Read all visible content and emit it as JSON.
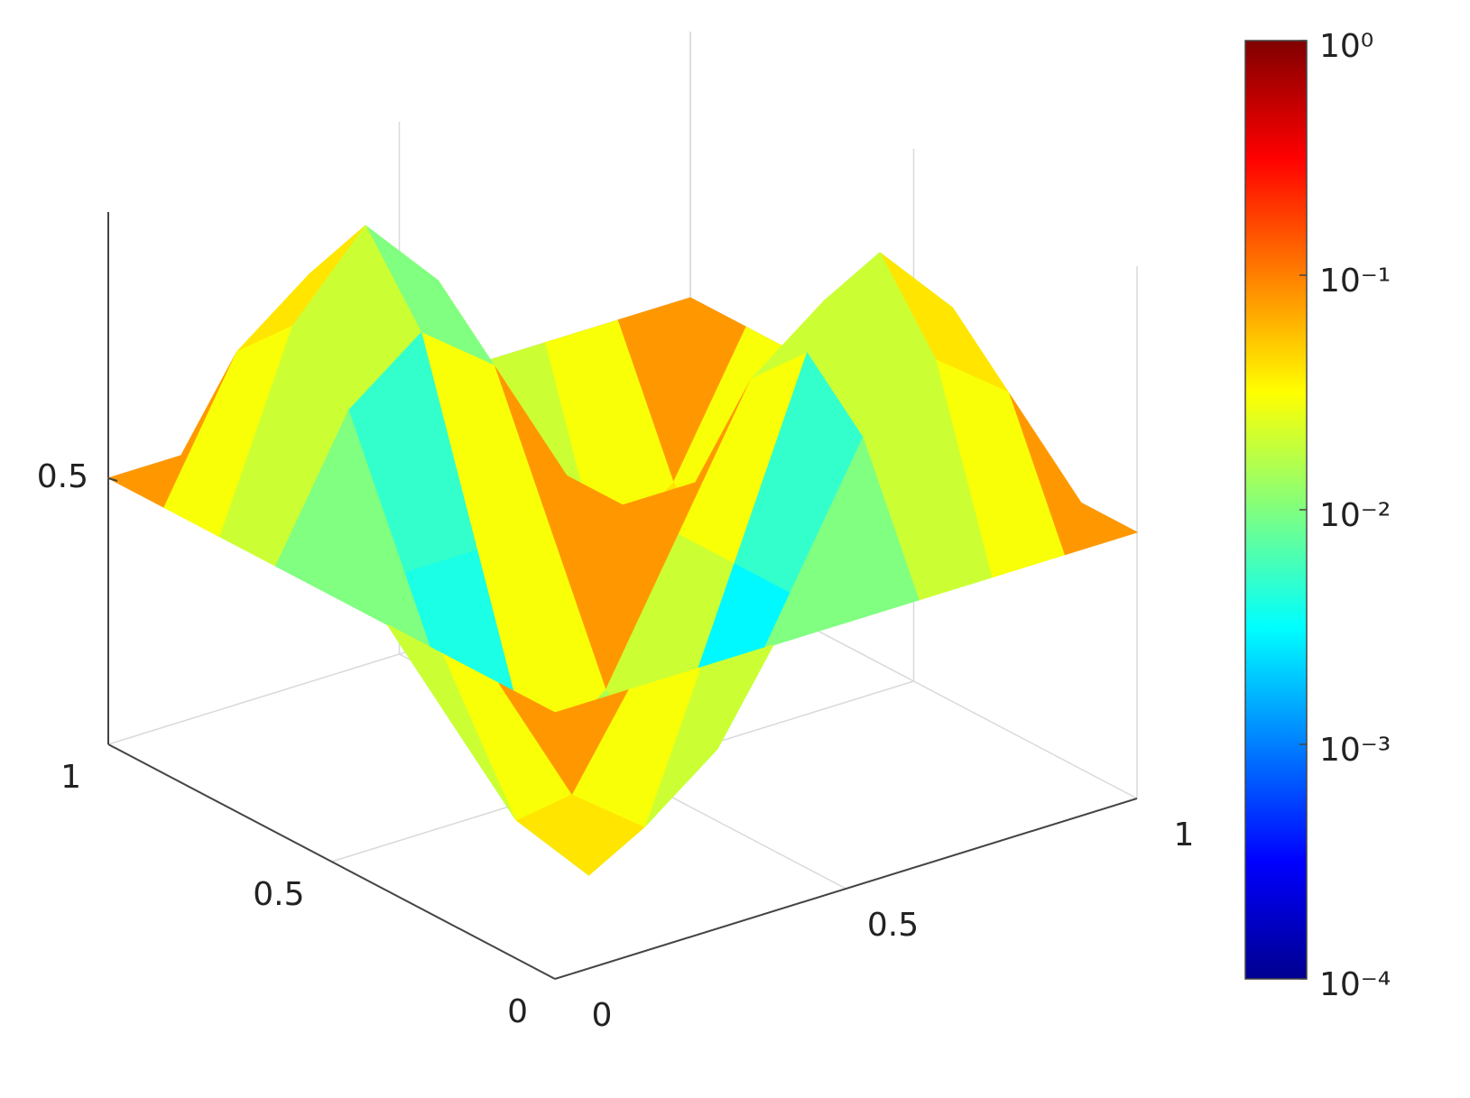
{
  "chart_data": {
    "type": "surface",
    "x": [
      0,
      0.125,
      0.25,
      0.375,
      0.5,
      0.625,
      0.75,
      0.875,
      1
    ],
    "y": [
      0,
      0.125,
      0.25,
      0.375,
      0.5,
      0.625,
      0.75,
      0.875,
      1
    ],
    "z": [
      [
        0.5,
        0.5,
        0.5,
        0.5,
        0.5,
        0.5,
        0.5,
        0.5,
        0.5
      ],
      [
        0.5,
        0.25,
        0.146,
        0.25,
        0.5,
        0.75,
        0.854,
        0.75,
        0.5
      ],
      [
        0.5,
        0.146,
        0,
        0.146,
        0.5,
        0.854,
        1,
        0.854,
        0.5
      ],
      [
        0.5,
        0.25,
        0.146,
        0.25,
        0.5,
        0.75,
        0.854,
        0.75,
        0.5
      ],
      [
        0.5,
        0.5,
        0.5,
        0.5,
        0.5,
        0.5,
        0.5,
        0.5,
        0.5
      ],
      [
        0.5,
        0.75,
        0.854,
        0.75,
        0.5,
        0.25,
        0.146,
        0.25,
        0.5
      ],
      [
        0.5,
        0.854,
        1,
        0.854,
        0.5,
        0.146,
        0,
        0.146,
        0.5
      ],
      [
        0.5,
        0.75,
        0.854,
        0.75,
        0.5,
        0.25,
        0.146,
        0.25,
        0.5
      ],
      [
        0.5,
        0.5,
        0.5,
        0.5,
        0.5,
        0.5,
        0.5,
        0.5,
        0.5
      ]
    ],
    "c": [
      [
        0.08,
        0.03,
        0.02,
        0.01,
        0.01,
        0.02,
        0.03,
        0.08
      ],
      [
        0.03,
        0.04,
        0.01,
        0.003,
        0.005,
        0.02,
        0.04,
        0.03
      ],
      [
        0.02,
        0.01,
        0.015,
        0.02,
        0.03,
        0.02,
        0.01,
        0.02
      ],
      [
        0.01,
        0.004,
        0.03,
        0.08,
        0.08,
        0.03,
        0.004,
        0.01
      ],
      [
        0.01,
        0.005,
        0.03,
        0.08,
        0.08,
        0.03,
        0.005,
        0.01
      ],
      [
        0.02,
        0.02,
        0.01,
        0.03,
        0.03,
        0.015,
        0.01,
        0.02
      ],
      [
        0.03,
        0.04,
        0.02,
        0.005,
        0.003,
        0.01,
        0.04,
        0.03
      ],
      [
        0.08,
        0.03,
        0.02,
        0.01,
        0.01,
        0.02,
        0.03,
        0.08
      ]
    ],
    "xlim": [
      0,
      1
    ],
    "ylim": [
      0,
      1
    ],
    "zlim": [
      0,
      1
    ],
    "xticks": [
      0,
      0.5,
      1
    ],
    "yticks": [
      0,
      0.5,
      1
    ],
    "zticks": [
      0.5
    ],
    "grid": true,
    "colormap": "jet",
    "clim": [
      0.0001,
      1
    ],
    "colorbar_scale": "log",
    "colorbar_ticks": [
      {
        "value": 1,
        "label": "10⁰"
      },
      {
        "value": 0.1,
        "label": "10⁻¹"
      },
      {
        "value": 0.01,
        "label": "10⁻²"
      },
      {
        "value": 0.001,
        "label": "10⁻³"
      },
      {
        "value": 0.0001,
        "label": "10⁻⁴"
      }
    ]
  }
}
